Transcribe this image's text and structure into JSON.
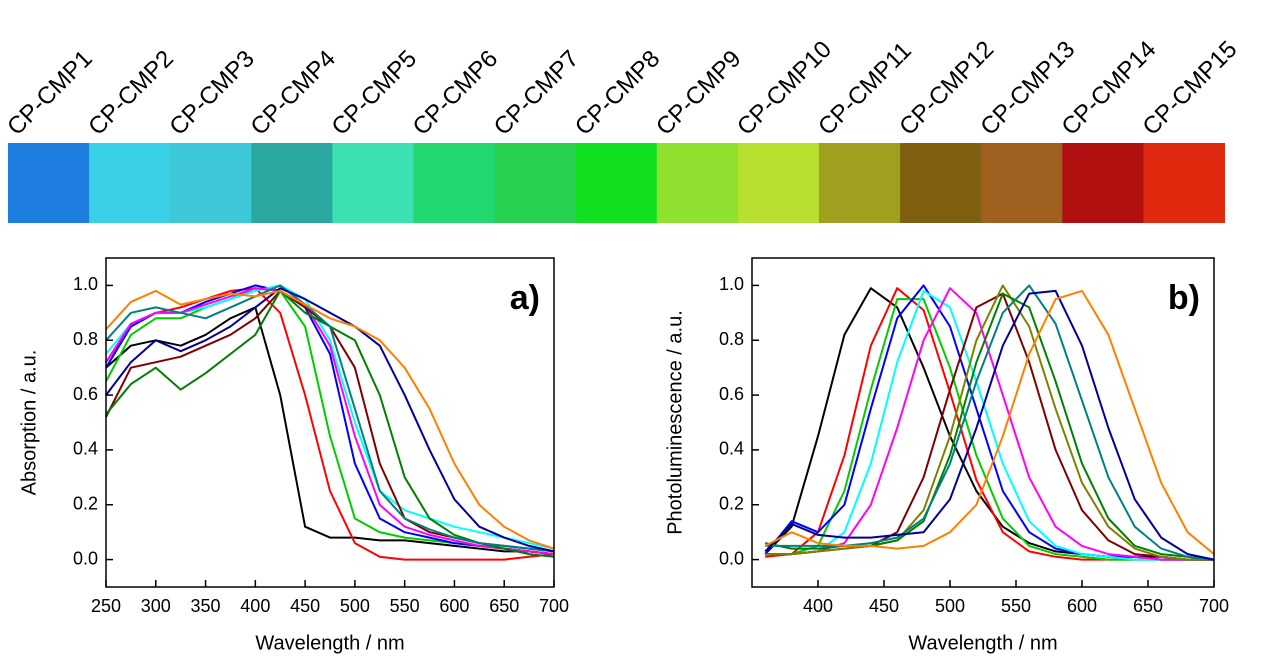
{
  "samples": {
    "labels": [
      "CP-CMP1",
      "CP-CMP2",
      "CP-CMP3",
      "CP-CMP4",
      "CP-CMP5",
      "CP-CMP6",
      "CP-CMP7",
      "CP-CMP8",
      "CP-CMP9",
      "CP-CMP10",
      "CP-CMP11",
      "CP-CMP12",
      "CP-CMP13",
      "CP-CMP14",
      "CP-CMP15"
    ],
    "colors": [
      "#1e7fe0",
      "#3ad0e8",
      "#3cc8d8",
      "#2aa8a0",
      "#3de0b0",
      "#22d870",
      "#28d050",
      "#10e020",
      "#90e030",
      "#b8e030",
      "#a0a020",
      "#806010",
      "#a06020",
      "#b01010",
      "#e02a10"
    ]
  },
  "chart_data": [
    {
      "type": "line",
      "annotation": "a)",
      "x_label": "Wavelength / nm",
      "y_label": "Absorption / a.u.",
      "xlim": [
        250,
        700
      ],
      "ylim": [
        -0.1,
        1.1
      ],
      "xticks": [
        250,
        300,
        350,
        400,
        450,
        500,
        550,
        600,
        650,
        700
      ],
      "yticks": [
        {
          "value": 0,
          "label": "0.0"
        },
        0.2,
        0.4,
        0.6,
        0.8,
        {
          "value": 1,
          "label": "1.0"
        }
      ],
      "x": [
        250,
        275,
        300,
        325,
        350,
        375,
        400,
        425,
        450,
        475,
        500,
        525,
        550,
        575,
        600,
        625,
        650,
        675,
        700
      ],
      "series": [
        {
          "color": "#000000",
          "values": [
            0.7,
            0.78,
            0.8,
            0.78,
            0.82,
            0.88,
            0.92,
            0.6,
            0.12,
            0.08,
            0.08,
            0.07,
            0.07,
            0.06,
            0.05,
            0.04,
            0.03,
            0.03,
            0.02
          ]
        },
        {
          "color": "#ff0000",
          "values": [
            0.72,
            0.85,
            0.9,
            0.92,
            0.95,
            0.98,
            0.99,
            0.9,
            0.6,
            0.25,
            0.06,
            0.01,
            0,
            0,
            0,
            0,
            0,
            0.01,
            0.02
          ]
        },
        {
          "color": "#00cc00",
          "values": [
            0.65,
            0.82,
            0.88,
            0.88,
            0.92,
            0.95,
            0.99,
            0.98,
            0.85,
            0.45,
            0.15,
            0.1,
            0.08,
            0.07,
            0.06,
            0.05,
            0.04,
            0.03,
            0.02
          ]
        },
        {
          "color": "#0000ff",
          "values": [
            0.7,
            0.85,
            0.9,
            0.9,
            0.94,
            0.97,
            1.0,
            0.98,
            0.92,
            0.75,
            0.35,
            0.15,
            0.1,
            0.08,
            0.06,
            0.05,
            0.04,
            0.03,
            0.02
          ]
        },
        {
          "color": "#00ffff",
          "values": [
            0.75,
            0.86,
            0.9,
            0.9,
            0.92,
            0.95,
            0.98,
            1.0,
            0.95,
            0.8,
            0.5,
            0.25,
            0.18,
            0.15,
            0.12,
            0.1,
            0.08,
            0.06,
            0.04
          ]
        },
        {
          "color": "#ff00ff",
          "values": [
            0.72,
            0.86,
            0.9,
            0.9,
            0.93,
            0.96,
            0.99,
            0.98,
            0.93,
            0.78,
            0.45,
            0.2,
            0.12,
            0.09,
            0.07,
            0.05,
            0.04,
            0.03,
            0.02
          ]
        },
        {
          "color": "#800000",
          "values": [
            0.52,
            0.7,
            0.72,
            0.74,
            0.78,
            0.82,
            0.88,
            0.98,
            0.92,
            0.85,
            0.7,
            0.35,
            0.15,
            0.1,
            0.08,
            0.06,
            0.05,
            0.04,
            0.03
          ]
        },
        {
          "color": "#008000",
          "values": [
            0.53,
            0.64,
            0.7,
            0.62,
            0.68,
            0.75,
            0.82,
            0.98,
            0.9,
            0.85,
            0.8,
            0.6,
            0.3,
            0.15,
            0.09,
            0.06,
            0.04,
            0.02,
            0.01
          ]
        },
        {
          "color": "#008080",
          "values": [
            0.8,
            0.9,
            0.92,
            0.9,
            0.88,
            0.92,
            0.96,
            1.0,
            0.93,
            0.85,
            0.55,
            0.25,
            0.15,
            0.11,
            0.08,
            0.06,
            0.05,
            0.04,
            0.03
          ]
        },
        {
          "color": "#000099",
          "values": [
            0.6,
            0.72,
            0.8,
            0.76,
            0.8,
            0.85,
            0.92,
            0.99,
            0.95,
            0.9,
            0.85,
            0.78,
            0.6,
            0.4,
            0.22,
            0.12,
            0.08,
            0.05,
            0.03
          ]
        },
        {
          "color": "#ff8000",
          "values": [
            0.84,
            0.94,
            0.98,
            0.93,
            0.95,
            0.97,
            0.96,
            0.98,
            0.93,
            0.88,
            0.85,
            0.8,
            0.7,
            0.55,
            0.35,
            0.2,
            0.12,
            0.07,
            0.04
          ]
        }
      ]
    },
    {
      "type": "line",
      "annotation": "b)",
      "x_label": "Wavelength / nm",
      "y_label": "Photoluminescence / a.u.",
      "xlim": [
        350,
        700
      ],
      "ylim": [
        -0.1,
        1.1
      ],
      "xticks": [
        400,
        450,
        500,
        550,
        600,
        650,
        700
      ],
      "yticks": [
        {
          "value": 0,
          "label": "0.0"
        },
        0.2,
        0.4,
        0.6,
        0.8,
        {
          "value": 1,
          "label": "1.0"
        }
      ],
      "x": [
        360,
        380,
        400,
        420,
        440,
        460,
        480,
        500,
        520,
        540,
        560,
        580,
        600,
        620,
        640,
        660,
        680,
        700
      ],
      "series": [
        {
          "color": "#000000",
          "values": [
            0.02,
            0.12,
            0.45,
            0.82,
            0.99,
            0.92,
            0.7,
            0.45,
            0.25,
            0.12,
            0.06,
            0.03,
            0.02,
            0.01,
            0.01,
            0.01,
            0,
            0
          ]
        },
        {
          "color": "#ff0000",
          "values": [
            0.01,
            0.02,
            0.1,
            0.38,
            0.78,
            0.99,
            0.91,
            0.61,
            0.29,
            0.1,
            0.03,
            0.01,
            0,
            0,
            0,
            0,
            0,
            0
          ]
        },
        {
          "color": "#00cc00",
          "values": [
            0.02,
            0.02,
            0.05,
            0.25,
            0.62,
            0.95,
            0.95,
            0.7,
            0.38,
            0.15,
            0.05,
            0.02,
            0.01,
            0,
            0,
            0,
            0,
            0
          ]
        },
        {
          "color": "#0000ff",
          "values": [
            0.02,
            0.14,
            0.1,
            0.2,
            0.55,
            0.88,
            1.0,
            0.85,
            0.55,
            0.25,
            0.1,
            0.04,
            0.02,
            0.01,
            0.01,
            0,
            0,
            0
          ]
        },
        {
          "color": "#00ffff",
          "values": [
            0.02,
            0.02,
            0.03,
            0.1,
            0.35,
            0.72,
            0.98,
            0.92,
            0.65,
            0.35,
            0.14,
            0.05,
            0.02,
            0.01,
            0,
            0,
            0,
            0
          ]
        },
        {
          "color": "#ff00ff",
          "values": [
            0.02,
            0.02,
            0.03,
            0.06,
            0.2,
            0.48,
            0.8,
            0.99,
            0.9,
            0.6,
            0.3,
            0.12,
            0.05,
            0.02,
            0.01,
            0,
            0,
            0
          ]
        },
        {
          "color": "#800000",
          "values": [
            0.02,
            0.02,
            0.03,
            0.04,
            0.05,
            0.1,
            0.3,
            0.62,
            0.92,
            0.97,
            0.72,
            0.4,
            0.18,
            0.07,
            0.02,
            0.01,
            0,
            0
          ]
        },
        {
          "color": "#808000",
          "values": [
            0.02,
            0.02,
            0.03,
            0.04,
            0.05,
            0.07,
            0.18,
            0.45,
            0.8,
            1.0,
            0.85,
            0.55,
            0.28,
            0.12,
            0.04,
            0.01,
            0,
            0
          ]
        },
        {
          "color": "#008000",
          "values": [
            0.06,
            0.04,
            0.04,
            0.05,
            0.05,
            0.07,
            0.14,
            0.38,
            0.72,
            0.97,
            0.92,
            0.65,
            0.35,
            0.15,
            0.05,
            0.02,
            0.01,
            0
          ]
        },
        {
          "color": "#008080",
          "values": [
            0.05,
            0.05,
            0.05,
            0.05,
            0.06,
            0.08,
            0.15,
            0.35,
            0.65,
            0.9,
            1.0,
            0.86,
            0.58,
            0.3,
            0.12,
            0.04,
            0.01,
            0
          ]
        },
        {
          "color": "#000099",
          "values": [
            0.03,
            0.13,
            0.09,
            0.08,
            0.08,
            0.09,
            0.1,
            0.22,
            0.48,
            0.78,
            0.97,
            0.98,
            0.78,
            0.48,
            0.22,
            0.08,
            0.02,
            0
          ]
        },
        {
          "color": "#ff8000",
          "values": [
            0.05,
            0.1,
            0.06,
            0.05,
            0.05,
            0.04,
            0.05,
            0.1,
            0.2,
            0.45,
            0.75,
            0.95,
            0.98,
            0.82,
            0.55,
            0.28,
            0.1,
            0.02
          ]
        }
      ]
    }
  ]
}
